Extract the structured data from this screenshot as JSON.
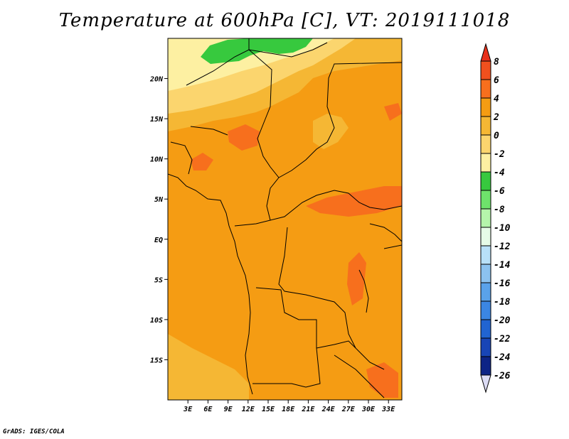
{
  "title": "Temperature at 600hPa [C], VT: 2019111018",
  "footer": "GrADS: IGES/COLA",
  "chart_data": {
    "type": "heatmap",
    "title": "Temperature at 600hPa [C], VT: 2019111018",
    "variable": "Temperature",
    "level": "600hPa",
    "units": "C",
    "valid_time": "2019111018",
    "x_ticks": [
      "3E",
      "6E",
      "9E",
      "12E",
      "15E",
      "18E",
      "21E",
      "24E",
      "27E",
      "30E",
      "33E"
    ],
    "y_ticks": [
      "20N",
      "15N",
      "10N",
      "5N",
      "EQ",
      "5S",
      "10S",
      "15S"
    ],
    "lon_range": [
      0,
      35
    ],
    "lat_range": [
      -20,
      25
    ],
    "colorbar": {
      "levels": [
        8,
        6,
        4,
        2,
        0,
        -2,
        -4,
        -6,
        -8,
        -10,
        -12,
        -14,
        -16,
        -18,
        -20,
        -22,
        -24,
        -26
      ],
      "colors": [
        "#e8301a",
        "#f0501e",
        "#f76f1d",
        "#f59c13",
        "#f5b734",
        "#fbd56e",
        "#fdf0a2",
        "#37c93e",
        "#6ee36b",
        "#b5f5ab",
        "#e6fbe7",
        "#b8e0f8",
        "#8cc2ef",
        "#5aa2ea",
        "#3b86e3",
        "#2164d1",
        "#1845b6",
        "#0d2486",
        "#dcdcf5"
      ]
    },
    "field_summary": {
      "dominant_range_C": [
        2,
        4
      ],
      "warm_bands_C": [
        4,
        6
      ],
      "cool_north_C": [
        -6,
        0
      ]
    }
  }
}
